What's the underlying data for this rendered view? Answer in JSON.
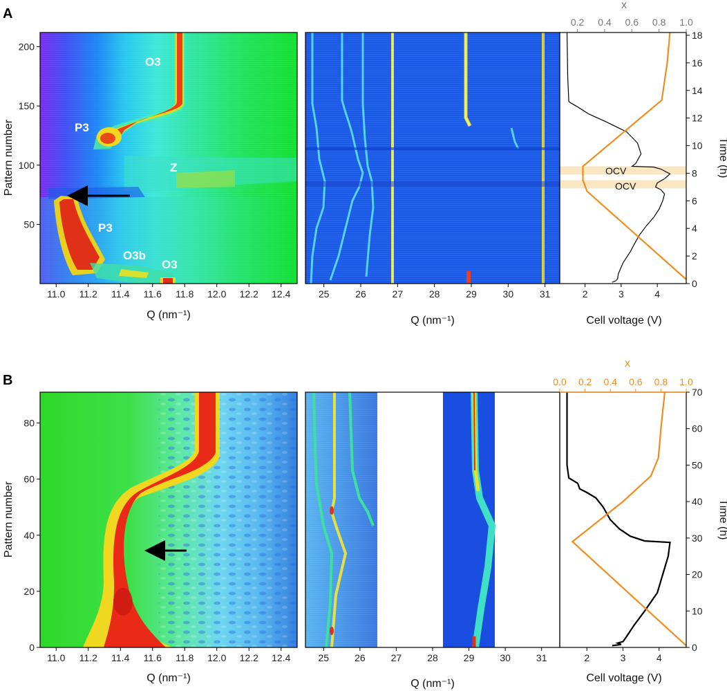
{
  "chart_data": [
    {
      "panel": "A",
      "type": "heatmap",
      "subpanels": [
        {
          "name": "a-left",
          "type": "heatmap",
          "xlabel": "Q (nm⁻¹)",
          "ylabel": "Pattern number",
          "xlim": [
            10.9,
            12.5
          ],
          "ylim": [
            0,
            212
          ],
          "xticks": [
            "11.0",
            "11.2",
            "11.4",
            "11.6",
            "11.8",
            "12.0",
            "12.2",
            "12.4"
          ],
          "yticks": [
            "50",
            "100",
            "150",
            "200"
          ],
          "annotations": [
            "O3",
            "P3",
            "Z",
            "P3",
            "O3b",
            "O3"
          ],
          "arrow": {
            "at_x": 11.2,
            "at_y": 78
          }
        },
        {
          "name": "a-mid",
          "type": "heatmap",
          "xlabel": "Q (nm⁻¹)",
          "xlim": [
            24.5,
            31.4
          ],
          "xticks": [
            "25",
            "26",
            "27",
            "28",
            "29",
            "30",
            "31"
          ]
        },
        {
          "name": "a-right",
          "type": "line",
          "xlabel": "Cell voltage (V)",
          "top_axis_label": "x",
          "y2label": "Time (h)",
          "xlim": [
            1.3,
            4.8
          ],
          "xticks": [
            "2",
            "3",
            "4"
          ],
          "top_xlim": [
            0.07,
            1.0
          ],
          "top_xticks": [
            "0.2",
            "0.4",
            "0.6",
            "0.8",
            "1.0"
          ],
          "ylim": [
            0,
            18.2
          ],
          "yticks": [
            "0",
            "2",
            "4",
            "6",
            "8",
            "10",
            "12",
            "14",
            "16",
            "18"
          ],
          "ocv_bands": [
            {
              "label": "OCV",
              "t": [
                7.9,
                8.5
              ]
            },
            {
              "label": "OCV",
              "t": [
                6.9,
                7.5
              ]
            }
          ],
          "series": [
            {
              "name": "Cell voltage",
              "color": "#000000",
              "axis": "bottom",
              "points": [
                [
                  2.75,
                  0.1
                ],
                [
                  2.85,
                  0.2
                ],
                [
                  2.9,
                  0.35
                ],
                [
                  2.92,
                  0.7
                ],
                [
                  3.05,
                  1.5
                ],
                [
                  3.25,
                  2.3
                ],
                [
                  3.35,
                  2.8
                ],
                [
                  3.5,
                  3.5
                ],
                [
                  3.7,
                  4.2
                ],
                [
                  3.9,
                  4.8
                ],
                [
                  4.05,
                  5.4
                ],
                [
                  4.15,
                  6.0
                ],
                [
                  4.2,
                  6.5
                ],
                [
                  4.1,
                  6.8
                ],
                [
                  3.95,
                  7.0
                ],
                [
                  4.0,
                  7.3
                ],
                [
                  4.2,
                  7.6
                ],
                [
                  4.35,
                  7.95
                ],
                [
                  4.1,
                  8.3
                ],
                [
                  3.9,
                  8.45
                ],
                [
                  3.3,
                  8.5
                ],
                [
                  3.4,
                  8.7
                ],
                [
                  3.55,
                  9.4
                ],
                [
                  3.45,
                  10.2
                ],
                [
                  3.15,
                  11.0
                ],
                [
                  2.6,
                  11.7
                ],
                [
                  2.1,
                  12.3
                ],
                [
                  1.8,
                  12.8
                ],
                [
                  1.6,
                  13.1
                ],
                [
                  1.55,
                  13.2
                ],
                [
                  1.52,
                  15
                ],
                [
                  1.5,
                  18.2
                ]
              ]
            },
            {
              "name": "x",
              "color": "#f28c1e",
              "axis": "top",
              "points": [
                [
                  1.0,
                  0.3
                ],
                [
                  0.27,
                  6.7
                ],
                [
                  0.24,
                  7.5
                ],
                [
                  0.24,
                  8.5
                ],
                [
                  0.82,
                  13.3
                ],
                [
                  0.86,
                  16
                ],
                [
                  0.88,
                  18.2
                ]
              ]
            }
          ]
        }
      ],
      "panel_label": "A"
    },
    {
      "panel": "B",
      "type": "heatmap",
      "subpanels": [
        {
          "name": "b-left",
          "type": "heatmap",
          "xlabel": "Q (nm⁻¹)",
          "ylabel": "Pattern number",
          "xlim": [
            10.9,
            12.5
          ],
          "ylim": [
            0,
            91
          ],
          "xticks": [
            "11.0",
            "11.2",
            "11.4",
            "11.6",
            "11.8",
            "12.0",
            "12.2",
            "12.4"
          ],
          "yticks": [
            "0",
            "20",
            "40",
            "60",
            "80"
          ],
          "arrow": {
            "at_x": 11.55,
            "at_y": 35
          }
        },
        {
          "name": "b-mid",
          "type": "heatmap",
          "xlabel": "Q (nm⁻¹)",
          "xlim": [
            24.5,
            31.5
          ],
          "xticks": [
            "25",
            "26",
            "27",
            "28",
            "29",
            "30",
            "31"
          ],
          "data_ranges": [
            [
              24.5,
              26.45
            ],
            [
              28.3,
              29.65
            ]
          ]
        },
        {
          "name": "b-right",
          "type": "line",
          "xlabel": "Cell voltage (V)",
          "top_axis_label": "x",
          "y2label": "Time (h)",
          "xlim": [
            1.25,
            4.75
          ],
          "xticks": [
            "2",
            "3",
            "4"
          ],
          "top_xlim": [
            0.0,
            1.0
          ],
          "top_xticks": [
            "0.0",
            "0.2",
            "0.4",
            "0.6",
            "0.8",
            "1.0"
          ],
          "ylim": [
            0,
            70
          ],
          "yticks": [
            "0",
            "10",
            "20",
            "30",
            "40",
            "50",
            "60",
            "70"
          ],
          "series": [
            {
              "name": "Cell voltage",
              "color": "#000000",
              "axis": "bottom",
              "points": [
                [
                  2.7,
                  0.5
                ],
                [
                  2.95,
                  0.8
                ],
                [
                  2.85,
                  1.2
                ],
                [
                  3.0,
                  1.6
                ],
                [
                  3.1,
                  3
                ],
                [
                  3.3,
                  6
                ],
                [
                  3.6,
                  10
                ],
                [
                  3.95,
                  15
                ],
                [
                  4.1,
                  20
                ],
                [
                  4.25,
                  25
                ],
                [
                  4.3,
                  28.8
                ],
                [
                  3.6,
                  29.2
                ],
                [
                  3.2,
                  30.5
                ],
                [
                  2.9,
                  32.5
                ],
                [
                  2.65,
                  35
                ],
                [
                  2.45,
                  38.5
                ],
                [
                  2.25,
                  41
                ],
                [
                  2.0,
                  42.5
                ],
                [
                  1.8,
                  43.5
                ],
                [
                  1.75,
                  45
                ],
                [
                  1.5,
                  46.5
                ],
                [
                  1.45,
                  50
                ],
                [
                  1.45,
                  70
                ]
              ]
            },
            {
              "name": "x",
              "color": "#f28c1e",
              "axis": "top",
              "points": [
                [
                  1.0,
                  0.5
                ],
                [
                  0.1,
                  29
                ],
                [
                  0.5,
                  40
                ],
                [
                  0.72,
                  47
                ],
                [
                  0.78,
                  52
                ],
                [
                  0.8,
                  60
                ],
                [
                  0.83,
                  70
                ]
              ]
            }
          ]
        }
      ],
      "panel_label": "B"
    }
  ]
}
